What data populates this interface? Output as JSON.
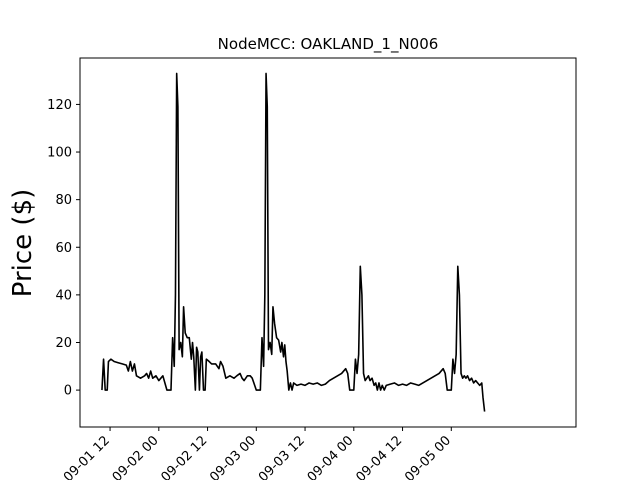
{
  "chart_data": {
    "type": "line",
    "title": "NodeMCC: OAKLAND_1_N006",
    "xlabel": "",
    "ylabel": "Price ($)",
    "x_unit": "hours since 2019-09-01 00",
    "xlim": [
      4.6,
      126.7
    ],
    "ylim": [
      -15.5,
      139.5
    ],
    "grid": false,
    "x_ticks": [
      {
        "value": 12,
        "label": "09-01 12"
      },
      {
        "value": 24,
        "label": "09-02 00"
      },
      {
        "value": 36,
        "label": "09-02 12"
      },
      {
        "value": 48,
        "label": "09-03 00"
      },
      {
        "value": 60,
        "label": "09-03 12"
      },
      {
        "value": 72,
        "label": "09-04 00"
      },
      {
        "value": 84,
        "label": "09-04 12"
      },
      {
        "value": 96,
        "label": "09-05 00"
      }
    ],
    "y_ticks": [
      0,
      20,
      40,
      60,
      80,
      100,
      120
    ],
    "series": [
      {
        "name": "",
        "color": "#000000",
        "points": [
          [
            10.0,
            0
          ],
          [
            10.4,
            13
          ],
          [
            10.8,
            0
          ],
          [
            11.3,
            0
          ],
          [
            11.6,
            12
          ],
          [
            12.2,
            13
          ],
          [
            13.0,
            12
          ],
          [
            14.0,
            11.5
          ],
          [
            15.0,
            11
          ],
          [
            16.0,
            10.5
          ],
          [
            16.5,
            8
          ],
          [
            17.0,
            12
          ],
          [
            17.5,
            8
          ],
          [
            18.0,
            11
          ],
          [
            18.5,
            6
          ],
          [
            19.5,
            5
          ],
          [
            20.5,
            6
          ],
          [
            21.0,
            7
          ],
          [
            21.5,
            5
          ],
          [
            22.0,
            8
          ],
          [
            22.5,
            5
          ],
          [
            23.3,
            6
          ],
          [
            24.0,
            4
          ],
          [
            24.5,
            5
          ],
          [
            25.0,
            6
          ],
          [
            26.0,
            0
          ],
          [
            27.0,
            0
          ],
          [
            27.4,
            22
          ],
          [
            27.8,
            10
          ],
          [
            28.1,
            40
          ],
          [
            28.4,
            133
          ],
          [
            28.7,
            119
          ],
          [
            29.0,
            17
          ],
          [
            29.4,
            20
          ],
          [
            29.8,
            14
          ],
          [
            30.1,
            35
          ],
          [
            30.5,
            24
          ],
          [
            31.0,
            22
          ],
          [
            31.5,
            22
          ],
          [
            32.0,
            13
          ],
          [
            32.3,
            20
          ],
          [
            32.6,
            14
          ],
          [
            33.0,
            0
          ],
          [
            33.3,
            18
          ],
          [
            33.6,
            16
          ],
          [
            34.0,
            0
          ],
          [
            34.3,
            14
          ],
          [
            34.6,
            16
          ],
          [
            35.0,
            0
          ],
          [
            35.4,
            0
          ],
          [
            35.7,
            13
          ],
          [
            36.4,
            12
          ],
          [
            37.0,
            11
          ],
          [
            38.0,
            11
          ],
          [
            38.8,
            9
          ],
          [
            39.2,
            12
          ],
          [
            39.8,
            10
          ],
          [
            40.5,
            5
          ],
          [
            41.5,
            6
          ],
          [
            42.5,
            5
          ],
          [
            43.2,
            6
          ],
          [
            44.0,
            7
          ],
          [
            44.5,
            5
          ],
          [
            45.0,
            4
          ],
          [
            45.8,
            6
          ],
          [
            46.5,
            6
          ],
          [
            47.0,
            5
          ],
          [
            48.0,
            0
          ],
          [
            48.5,
            0
          ],
          [
            49.0,
            0
          ],
          [
            49.4,
            22
          ],
          [
            49.8,
            10
          ],
          [
            50.1,
            40
          ],
          [
            50.4,
            133
          ],
          [
            50.7,
            119
          ],
          [
            51.0,
            17
          ],
          [
            51.4,
            20
          ],
          [
            51.8,
            15
          ],
          [
            52.1,
            35
          ],
          [
            52.5,
            28
          ],
          [
            53.0,
            22
          ],
          [
            53.5,
            21
          ],
          [
            54.0,
            16
          ],
          [
            54.3,
            20
          ],
          [
            54.7,
            14
          ],
          [
            55.0,
            19
          ],
          [
            55.3,
            12
          ],
          [
            55.6,
            8
          ],
          [
            56.0,
            0
          ],
          [
            56.4,
            3
          ],
          [
            56.8,
            0
          ],
          [
            57.2,
            3
          ],
          [
            58.0,
            2
          ],
          [
            59.0,
            2.5
          ],
          [
            60.0,
            2
          ],
          [
            61.0,
            3
          ],
          [
            62.0,
            2.5
          ],
          [
            63.0,
            3
          ],
          [
            64.0,
            2
          ],
          [
            65.0,
            2.5
          ],
          [
            66.0,
            4
          ],
          [
            67.0,
            5
          ],
          [
            68.0,
            6
          ],
          [
            69.0,
            7
          ],
          [
            70.0,
            9
          ],
          [
            70.5,
            7
          ],
          [
            71.0,
            0
          ],
          [
            72.0,
            0
          ],
          [
            72.4,
            13
          ],
          [
            72.8,
            7
          ],
          [
            73.2,
            15
          ],
          [
            73.6,
            52
          ],
          [
            74.0,
            40
          ],
          [
            74.4,
            7
          ],
          [
            74.8,
            4
          ],
          [
            75.2,
            5
          ],
          [
            75.6,
            6
          ],
          [
            76.0,
            4
          ],
          [
            76.5,
            5
          ],
          [
            77.0,
            2
          ],
          [
            77.4,
            3
          ],
          [
            77.8,
            0
          ],
          [
            78.2,
            3
          ],
          [
            78.6,
            0
          ],
          [
            79.0,
            2
          ],
          [
            79.5,
            0
          ],
          [
            80.0,
            2
          ],
          [
            81.0,
            2.5
          ],
          [
            82.0,
            3
          ],
          [
            83.0,
            2
          ],
          [
            84.0,
            2.5
          ],
          [
            85.0,
            2
          ],
          [
            86.0,
            3
          ],
          [
            87.0,
            2.5
          ],
          [
            88.0,
            2
          ],
          [
            89.0,
            3
          ],
          [
            90.0,
            4
          ],
          [
            91.0,
            5
          ],
          [
            92.0,
            6
          ],
          [
            93.0,
            7
          ],
          [
            94.0,
            9
          ],
          [
            94.5,
            7
          ],
          [
            95.0,
            0
          ],
          [
            96.0,
            0
          ],
          [
            96.4,
            13
          ],
          [
            96.8,
            7
          ],
          [
            97.2,
            15
          ],
          [
            97.6,
            52
          ],
          [
            98.0,
            40
          ],
          [
            98.4,
            7
          ],
          [
            98.8,
            5
          ],
          [
            99.2,
            6
          ],
          [
            99.6,
            5
          ],
          [
            100.0,
            6
          ],
          [
            100.5,
            4
          ],
          [
            101.0,
            5
          ],
          [
            101.5,
            3
          ],
          [
            102.0,
            4
          ],
          [
            102.5,
            3
          ],
          [
            103.0,
            2
          ],
          [
            103.5,
            3
          ],
          [
            103.8,
            -3
          ],
          [
            104.2,
            -9
          ]
        ]
      }
    ]
  }
}
